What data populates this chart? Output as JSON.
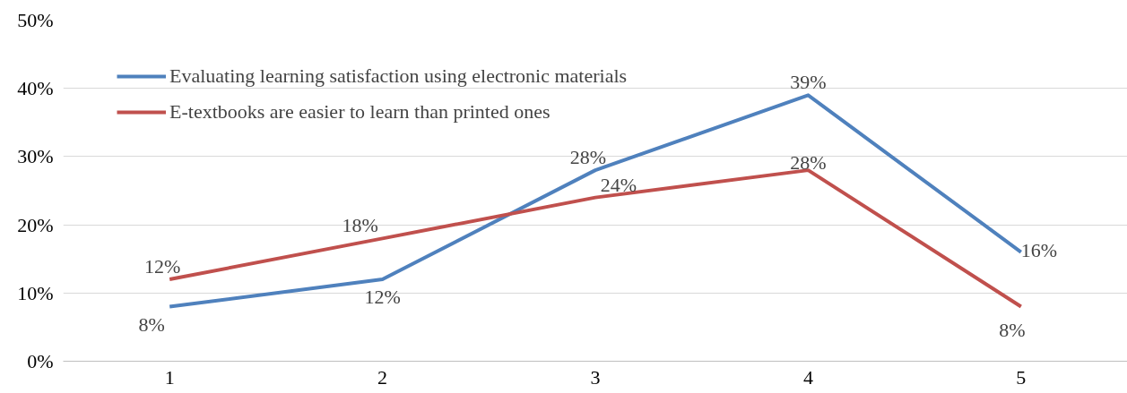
{
  "chart_data": {
    "type": "line",
    "categories": [
      "1",
      "2",
      "3",
      "4",
      "5"
    ],
    "series": [
      {
        "name": "Evaluating learning satisfaction using electronic materials",
        "color": "#4f81bd",
        "values": [
          8,
          12,
          28,
          39,
          16
        ],
        "value_labels": [
          "8%",
          "12%",
          "28%",
          "39%",
          "16%"
        ]
      },
      {
        "name": "E-textbooks are easier to learn than printed ones",
        "color": "#c0504d",
        "values": [
          12,
          18,
          24,
          28,
          8
        ],
        "value_labels": [
          "12%",
          "18%",
          "24%",
          "28%",
          "8%"
        ]
      }
    ],
    "ylim": [
      0,
      50
    ],
    "yticks": [
      {
        "value": 0,
        "label": "0%"
      },
      {
        "value": 10,
        "label": "10%"
      },
      {
        "value": 20,
        "label": "20%"
      },
      {
        "value": 30,
        "label": "30%"
      },
      {
        "value": 40,
        "label": "40%"
      },
      {
        "value": 50,
        "label": "50%"
      }
    ],
    "grid": "y",
    "legend": "top left",
    "marker": "none",
    "line_style": "solid"
  }
}
